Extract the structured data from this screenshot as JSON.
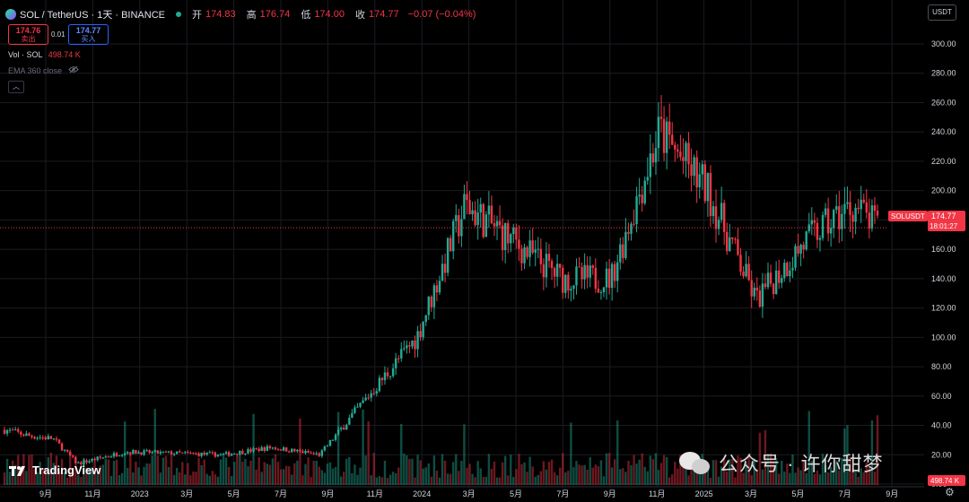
{
  "header": {
    "symbol_title": "SOL / TetherUS · 1天 · BINANCE",
    "open_label": "开",
    "open_value": "174.83",
    "high_label": "高",
    "high_value": "176.74",
    "low_label": "低",
    "low_value": "174.00",
    "close_label": "收",
    "close_value": "174.77",
    "change": "−0.07 (−0.04%)"
  },
  "trade": {
    "sell_price": "174.76",
    "sell_label": "卖出",
    "spread": "0.01",
    "buy_price": "174.77",
    "buy_label": "买入"
  },
  "indicators": {
    "vol_label": "Vol · SOL",
    "vol_value": "498.74 K",
    "ema_label": "EMA 360 close"
  },
  "currency_button": "USDT",
  "price_scale": {
    "ticks": [
      "300.00",
      "280.00",
      "260.00",
      "240.00",
      "220.00",
      "200.00",
      "180.00",
      "160.00",
      "140.00",
      "120.00",
      "100.00",
      "80.00",
      "60.00",
      "40.00",
      "20.00",
      "0.00"
    ]
  },
  "price_label": {
    "symbol": "SOLUSDT",
    "price": "174.77",
    "countdown": "18:01:27"
  },
  "volume_label": "498.74 K",
  "time_axis": {
    "ticks": [
      "9月",
      "11月",
      "2023",
      "3月",
      "5月",
      "7月",
      "9月",
      "11月",
      "2024",
      "3月",
      "5月",
      "7月",
      "9月",
      "11月",
      "2025",
      "3月",
      "5月",
      "7月",
      "9月"
    ]
  },
  "brand": "TradingView",
  "watermark": "公众号 · 许你甜梦",
  "colors": {
    "up": "#22ab94",
    "down": "#f23645",
    "background": "#000000",
    "grid": "#1a1c22",
    "text": "#d1d4dc"
  },
  "chart_data": {
    "type": "candlestick",
    "series_label": "SOLUSDT",
    "timeframe": "1D",
    "y_axis_range": [
      0,
      300
    ],
    "last_close": 174.77,
    "approx_close_path": [
      {
        "t": "2022-08",
        "close": 37
      },
      {
        "t": "2022-09",
        "close": 33
      },
      {
        "t": "2022-10",
        "close": 31
      },
      {
        "t": "2022-11",
        "close": 14
      },
      {
        "t": "2023-01",
        "close": 22
      },
      {
        "t": "2023-03",
        "close": 21
      },
      {
        "t": "2023-05",
        "close": 20
      },
      {
        "t": "2023-07",
        "close": 25
      },
      {
        "t": "2023-09",
        "close": 20
      },
      {
        "t": "2023-11",
        "close": 60
      },
      {
        "t": "2024-01",
        "close": 100
      },
      {
        "t": "2024-03",
        "close": 190
      },
      {
        "t": "2024-05",
        "close": 165
      },
      {
        "t": "2024-07",
        "close": 140
      },
      {
        "t": "2024-09",
        "close": 140
      },
      {
        "t": "2024-11",
        "close": 240
      },
      {
        "t": "2025-01",
        "close": 200
      },
      {
        "t": "2025-03",
        "close": 125
      },
      {
        "t": "2025-05",
        "close": 165
      },
      {
        "t": "2025-07",
        "close": 190
      },
      {
        "t": "2025-08",
        "close": 174.77
      }
    ]
  }
}
